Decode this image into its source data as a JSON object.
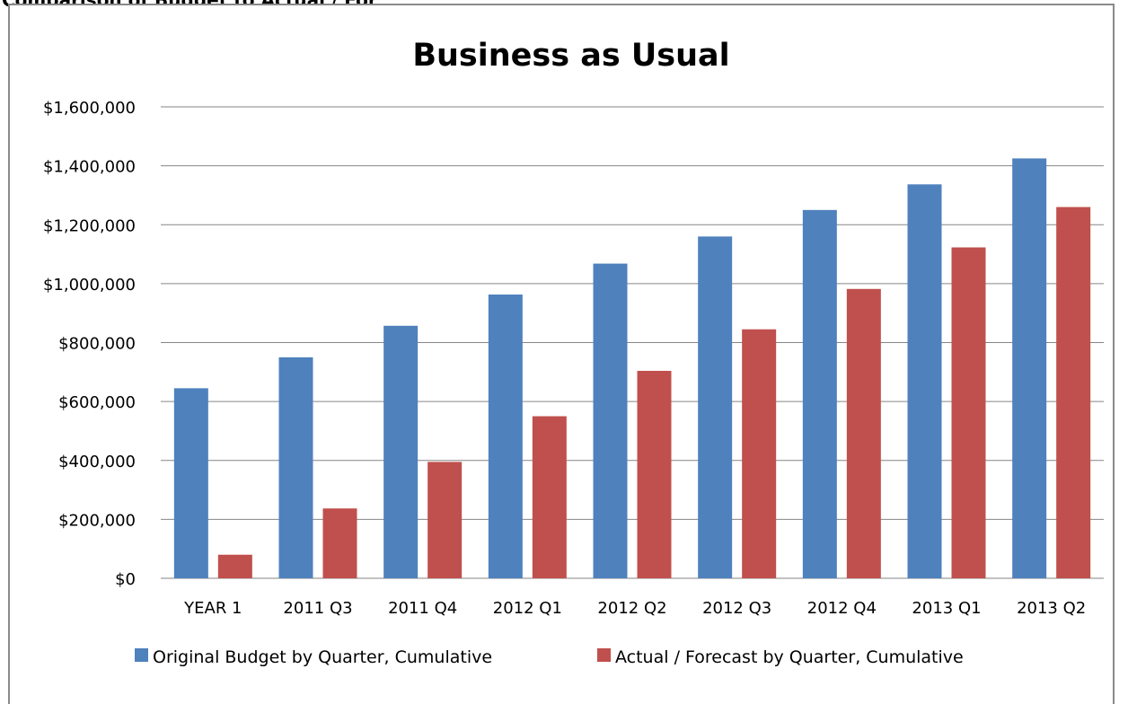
{
  "page": {
    "top_text": "Comparison of Budget to Actual / Forecast"
  },
  "chart_data": {
    "type": "bar",
    "title": "Business as Usual",
    "xlabel": "",
    "ylabel": "",
    "ylim": [
      0,
      1600000
    ],
    "yticks": [
      0,
      200000,
      400000,
      600000,
      800000,
      1000000,
      1200000,
      1400000,
      1600000
    ],
    "ytick_labels": [
      "$0",
      "$200,000",
      "$400,000",
      "$600,000",
      "$800,000",
      "$1,000,000",
      "$1,200,000",
      "$1,400,000",
      "$1,600,000"
    ],
    "grid": "horizontal",
    "legend_position": "bottom",
    "categories": [
      "YEAR 1",
      "2011 Q3",
      "2011 Q4",
      "2012 Q1",
      "2012 Q2",
      "2012 Q3",
      "2012 Q4",
      "2013 Q1",
      "2013 Q2"
    ],
    "series": [
      {
        "name": "Original Budget by Quarter, Cumulative",
        "color": "#4f81bd",
        "values": [
          645000,
          750000,
          857000,
          963000,
          1068000,
          1160000,
          1250000,
          1337000,
          1425000
        ]
      },
      {
        "name": "Actual / Forecast by Quarter, Cumulative",
        "color": "#c0504d",
        "values": [
          80000,
          237000,
          395000,
          550000,
          704000,
          845000,
          982000,
          1123000,
          1260000
        ]
      }
    ]
  }
}
